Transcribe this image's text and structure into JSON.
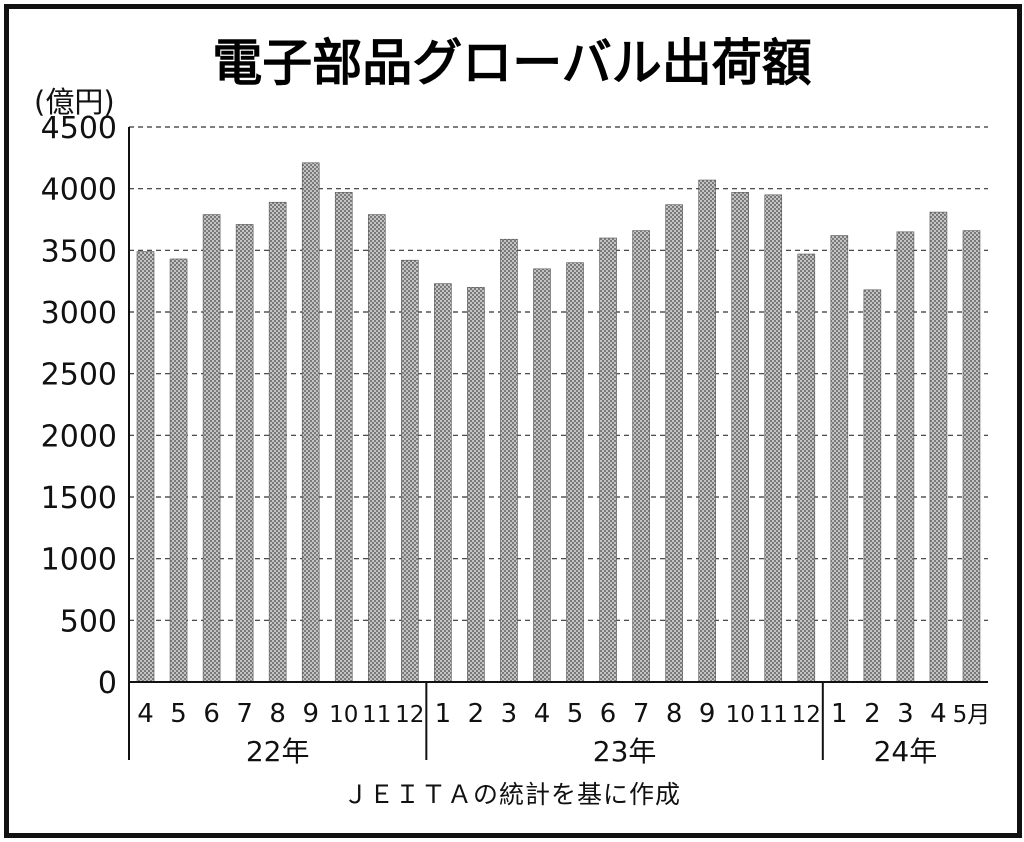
{
  "chart_data": {
    "type": "bar",
    "title": "電子部品グローバル出荷額",
    "ylabel": "(億円)",
    "xlabel": "",
    "ylim": [
      0,
      4500
    ],
    "yticks": [
      0,
      500,
      1000,
      1500,
      2000,
      2500,
      3000,
      3500,
      4000,
      4500
    ],
    "grid": true,
    "categories": [
      "4",
      "5",
      "6",
      "7",
      "8",
      "9",
      "10",
      "11",
      "12",
      "1",
      "2",
      "3",
      "4",
      "5",
      "6",
      "7",
      "8",
      "9",
      "10",
      "11",
      "12",
      "1",
      "2",
      "3",
      "4",
      "5月"
    ],
    "values": [
      3490,
      3430,
      3790,
      3710,
      3890,
      4210,
      3970,
      3790,
      3420,
      3230,
      3200,
      3590,
      3350,
      3400,
      3600,
      3660,
      3870,
      4070,
      3970,
      3950,
      3470,
      3620,
      3180,
      3650,
      3810,
      3660
    ],
    "year_groups": [
      {
        "label": "22年",
        "start": 0,
        "end": 8
      },
      {
        "label": "23年",
        "start": 9,
        "end": 20
      },
      {
        "label": "24年",
        "start": 21,
        "end": 25
      }
    ],
    "bar_color": "#8a8a8a",
    "source_note": "ＪＥＩＴＡの統計を基に作成"
  }
}
